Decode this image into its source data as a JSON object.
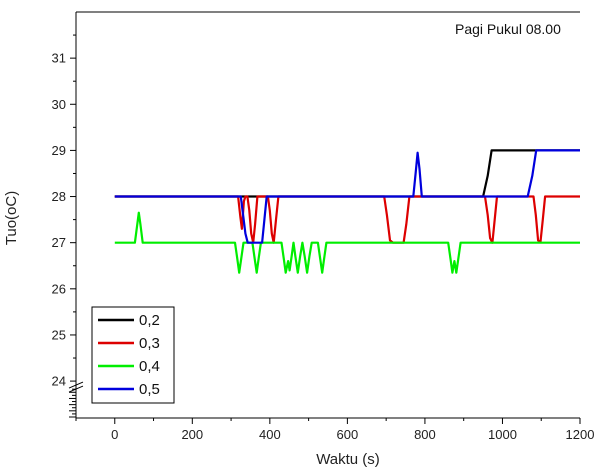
{
  "chart_data": {
    "type": "line",
    "annotation": "Pagi Pukul 08.00",
    "xlabel": "Waktu (s)",
    "ylabel": "Tuo(oC)",
    "xlim": [
      -100,
      1200
    ],
    "ylim": [
      23.2,
      32
    ],
    "axis_break_y": 24,
    "x_ticks": [
      0,
      200,
      400,
      600,
      800,
      1000,
      1200
    ],
    "y_ticks": [
      24,
      25,
      26,
      27,
      28,
      29,
      30,
      31
    ],
    "x_minor_step": 100,
    "y_minor_step": 0.5,
    "grid": false,
    "legend": "bottom-left",
    "series": [
      {
        "name": "0,2",
        "color": "#000000",
        "points": [
          [
            0,
            28
          ],
          [
            950,
            28
          ],
          [
            962,
            28.45
          ],
          [
            972,
            29
          ],
          [
            1200,
            29
          ]
        ]
      },
      {
        "name": "0,3",
        "color": "#dd0000",
        "points": [
          [
            0,
            28
          ],
          [
            318,
            28
          ],
          [
            324,
            27.55
          ],
          [
            328,
            27.3
          ],
          [
            333,
            27.9
          ],
          [
            337,
            28
          ],
          [
            342,
            28
          ],
          [
            347,
            27.7
          ],
          [
            352,
            27.2
          ],
          [
            357,
            27
          ],
          [
            362,
            27.4
          ],
          [
            368,
            28
          ],
          [
            395,
            28
          ],
          [
            400,
            27.7
          ],
          [
            405,
            27.2
          ],
          [
            410,
            27
          ],
          [
            416,
            27.5
          ],
          [
            422,
            28
          ],
          [
            695,
            28
          ],
          [
            702,
            27.6
          ],
          [
            710,
            27.05
          ],
          [
            718,
            27
          ],
          [
            745,
            27
          ],
          [
            752,
            27.4
          ],
          [
            760,
            28
          ],
          [
            955,
            28
          ],
          [
            962,
            27.6
          ],
          [
            968,
            27.1
          ],
          [
            974,
            27
          ],
          [
            980,
            27.5
          ],
          [
            986,
            28
          ],
          [
            1080,
            28
          ],
          [
            1086,
            27.6
          ],
          [
            1092,
            27.05
          ],
          [
            1098,
            27.02
          ],
          [
            1104,
            27.5
          ],
          [
            1110,
            28
          ],
          [
            1200,
            28
          ]
        ]
      },
      {
        "name": "0,4",
        "color": "#00ee00",
        "points": [
          [
            0,
            27
          ],
          [
            52,
            27
          ],
          [
            58,
            27.4
          ],
          [
            62,
            27.65
          ],
          [
            66,
            27.4
          ],
          [
            72,
            27
          ],
          [
            310,
            27
          ],
          [
            316,
            26.65
          ],
          [
            321,
            26.35
          ],
          [
            326,
            26.65
          ],
          [
            332,
            27
          ],
          [
            355,
            27
          ],
          [
            361,
            26.65
          ],
          [
            366,
            26.35
          ],
          [
            371,
            26.65
          ],
          [
            377,
            27
          ],
          [
            430,
            27
          ],
          [
            436,
            26.65
          ],
          [
            441,
            26.35
          ],
          [
            447,
            26.6
          ],
          [
            451,
            26.4
          ],
          [
            456,
            26.7
          ],
          [
            461,
            27
          ],
          [
            466,
            26.7
          ],
          [
            472,
            26.35
          ],
          [
            478,
            26.7
          ],
          [
            484,
            27
          ],
          [
            490,
            26.7
          ],
          [
            496,
            26.35
          ],
          [
            502,
            26.7
          ],
          [
            508,
            27
          ],
          [
            524,
            27
          ],
          [
            530,
            26.65
          ],
          [
            535,
            26.35
          ],
          [
            540,
            26.65
          ],
          [
            546,
            27
          ],
          [
            860,
            27
          ],
          [
            866,
            26.65
          ],
          [
            871,
            26.35
          ],
          [
            876,
            26.6
          ],
          [
            881,
            26.35
          ],
          [
            886,
            26.65
          ],
          [
            892,
            27
          ],
          [
            1200,
            27
          ]
        ]
      },
      {
        "name": "0,5",
        "color": "#0000dd",
        "points": [
          [
            0,
            28
          ],
          [
            325,
            28
          ],
          [
            331,
            27.6
          ],
          [
            337,
            27.2
          ],
          [
            343,
            27
          ],
          [
            380,
            27
          ],
          [
            386,
            27.5
          ],
          [
            392,
            28
          ],
          [
            770,
            28
          ],
          [
            776,
            28.5
          ],
          [
            781,
            28.95
          ],
          [
            786,
            28.6
          ],
          [
            792,
            28
          ],
          [
            1065,
            28
          ],
          [
            1077,
            28.45
          ],
          [
            1087,
            29
          ],
          [
            1200,
            29
          ]
        ]
      }
    ]
  }
}
